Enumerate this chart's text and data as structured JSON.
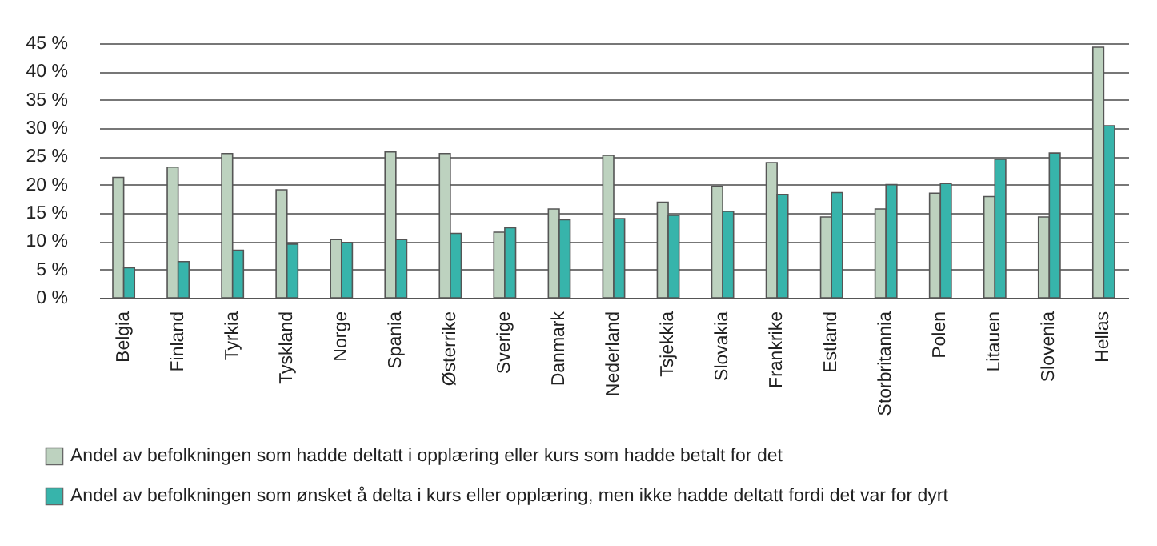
{
  "chart_data": {
    "type": "bar",
    "categories": [
      "Belgia",
      "Finland",
      "Tyrkia",
      "Tyskland",
      "Norge",
      "Spania",
      "Østerrike",
      "Sverige",
      "Danmark",
      "Nederland",
      "Tsjekkia",
      "Slovakia",
      "Frankrike",
      "Estland",
      "Storbritannia",
      "Polen",
      "Litauen",
      "Slovenia",
      "Hellas"
    ],
    "series": [
      {
        "name": "Andel av befolkningen som hadde deltatt i opplæring eller kurs som hadde betalt for det",
        "color": "#bdd2bf",
        "values": [
          21.3,
          23.1,
          25.5,
          19.1,
          10.3,
          25.8,
          25.5,
          11.6,
          15.7,
          25.2,
          16.9,
          19.7,
          23.9,
          14.3,
          15.7,
          18.5,
          17.9,
          14.3,
          44.3
        ]
      },
      {
        "name": "Andel av befolkningen som ønsket å delta i kurs eller opplæring, men ikke hadde deltatt fordi det var for dyrt",
        "color": "#37b4ab",
        "values": [
          5.3,
          6.4,
          8.4,
          9.5,
          9.8,
          10.3,
          11.4,
          12.4,
          13.8,
          14.0,
          14.6,
          15.3,
          18.3,
          18.6,
          20.0,
          20.2,
          24.5,
          25.6,
          30.4
        ]
      }
    ],
    "ylim": [
      0,
      45
    ],
    "yticks": [
      {
        "value": 0,
        "label": "0 %"
      },
      {
        "value": 5,
        "label": "5 %"
      },
      {
        "value": 10,
        "label": "10 %"
      },
      {
        "value": 15,
        "label": "15 %"
      },
      {
        "value": 20,
        "label": "20 %"
      },
      {
        "value": 25,
        "label": "25 %"
      },
      {
        "value": 30,
        "label": "30 %"
      },
      {
        "value": 35,
        "label": "35 %"
      },
      {
        "value": 40,
        "label": "40 %"
      },
      {
        "value": 45,
        "label": "45 %"
      }
    ],
    "grid": "y",
    "legend": "bottom"
  }
}
